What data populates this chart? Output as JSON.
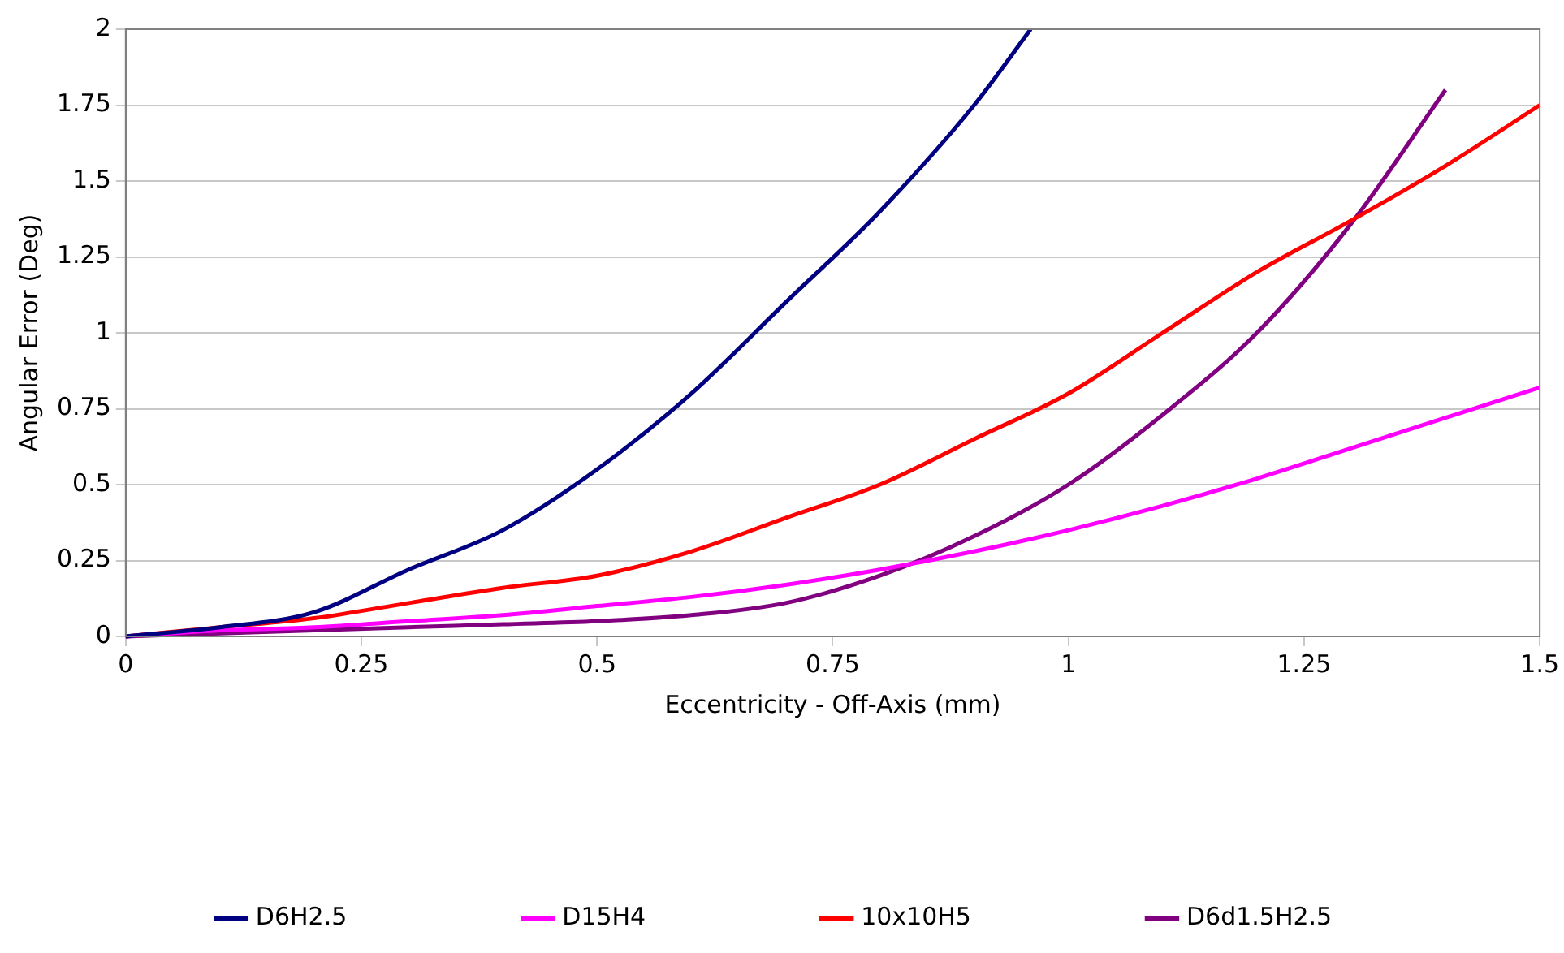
{
  "chart_data": {
    "type": "line",
    "xlabel": "Eccentricity - Off-Axis (mm)",
    "ylabel": "Angular Error (Deg)",
    "xlim": [
      0,
      1.5
    ],
    "xticks": [
      0,
      0.25,
      0.5,
      0.75,
      1,
      1.25,
      1.5
    ],
    "ylim": [
      0,
      2
    ],
    "yticks": [
      0,
      0.25,
      0.5,
      0.75,
      1,
      1.25,
      1.5,
      1.75,
      2
    ],
    "grid": "y",
    "legend": "bottom",
    "marker": "none",
    "line_style": "solid",
    "series": [
      {
        "name": "D6H2.5",
        "color": "#000080",
        "x": [
          0,
          0.1,
          0.2,
          0.3,
          0.4,
          0.5,
          0.6,
          0.7,
          0.8,
          0.9,
          0.96
        ],
        "values": [
          0,
          0.03,
          0.08,
          0.22,
          0.35,
          0.55,
          0.8,
          1.1,
          1.4,
          1.75,
          2.0
        ]
      },
      {
        "name": "D15H4",
        "color": "#ff00ff",
        "x": [
          0,
          0.1,
          0.2,
          0.3,
          0.4,
          0.5,
          0.6,
          0.7,
          0.8,
          0.9,
          1.0,
          1.1,
          1.2,
          1.3,
          1.4,
          1.5
        ],
        "values": [
          0,
          0.02,
          0.03,
          0.05,
          0.07,
          0.1,
          0.13,
          0.17,
          0.22,
          0.28,
          0.35,
          0.43,
          0.52,
          0.62,
          0.72,
          0.82
        ]
      },
      {
        "name": "10x10H5",
        "color": "#ff0000",
        "x": [
          0,
          0.1,
          0.2,
          0.3,
          0.4,
          0.5,
          0.6,
          0.7,
          0.8,
          0.9,
          1.0,
          1.1,
          1.2,
          1.3,
          1.4,
          1.5
        ],
        "values": [
          0,
          0.03,
          0.06,
          0.11,
          0.16,
          0.2,
          0.28,
          0.39,
          0.5,
          0.65,
          0.8,
          1.0,
          1.2,
          1.37,
          1.55,
          1.75
        ]
      },
      {
        "name": "D6d1.5H2.5",
        "color": "#800080",
        "x": [
          0,
          0.1,
          0.2,
          0.3,
          0.4,
          0.5,
          0.6,
          0.7,
          0.8,
          0.9,
          1.0,
          1.1,
          1.2,
          1.3,
          1.4
        ],
        "values": [
          0,
          0.01,
          0.02,
          0.03,
          0.04,
          0.05,
          0.07,
          0.11,
          0.2,
          0.33,
          0.5,
          0.73,
          1.0,
          1.36,
          1.8
        ]
      }
    ]
  }
}
